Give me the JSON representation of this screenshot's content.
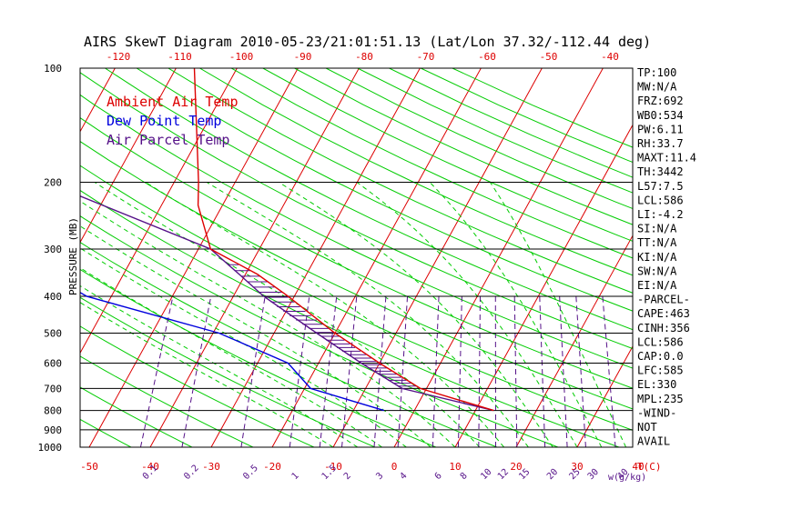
{
  "chart_data": {
    "type": "line",
    "title": "AIRS SkewT Diagram 2010-05-23/21:01:51.13 (Lat/Lon 37.32/-112.44 deg)",
    "ylabel": "PRESSURE (MB)",
    "xlabel": "T(C)",
    "mixing_ratio_unit": "w(g/kg)",
    "y_scale": "log",
    "ylim": [
      1000,
      100
    ],
    "legend": [
      "Ambient Air Temp",
      "Dew Point Temp",
      "Air Parcel Temp"
    ],
    "pressure_ticks": [
      100,
      200,
      300,
      400,
      500,
      600,
      700,
      800,
      900,
      1000
    ],
    "bottom_temp_ticks": [
      -50,
      -40,
      -30,
      -20,
      -10,
      0,
      10,
      20,
      30,
      40
    ],
    "top_temp_ticks": [
      -120,
      -110,
      -100,
      -90,
      -80,
      -70,
      -60,
      -50,
      -40
    ],
    "mixing_ratio_ticks": [
      "0.1",
      "0.2",
      "0.5",
      "1",
      "1.5",
      "2",
      "3",
      "4",
      "6",
      "8",
      "10",
      "12",
      "15",
      "20",
      "25",
      "30",
      "40"
    ],
    "series": [
      {
        "name": "Ambient Air Temp",
        "color": "#dd0000",
        "points": [
          [
            100,
            -67
          ],
          [
            200,
            -56
          ],
          [
            230,
            -54
          ],
          [
            300,
            -48
          ],
          [
            350,
            -38
          ],
          [
            400,
            -31
          ],
          [
            500,
            -20
          ],
          [
            600,
            -10
          ],
          [
            700,
            -1
          ],
          [
            800,
            13
          ]
        ]
      },
      {
        "name": "Dew Point Temp",
        "color": "#0000dd",
        "points": [
          [
            100,
            -95
          ],
          [
            150,
            -102
          ],
          [
            200,
            -100
          ],
          [
            250,
            -91
          ],
          [
            300,
            -82
          ],
          [
            400,
            -64
          ],
          [
            500,
            -39
          ],
          [
            600,
            -25
          ],
          [
            700,
            -19
          ],
          [
            800,
            -5
          ]
        ]
      },
      {
        "name": "Air Parcel Temp",
        "color": "#551188",
        "points": [
          [
            100,
            -110
          ],
          [
            200,
            -81
          ],
          [
            300,
            -48
          ],
          [
            350,
            -41
          ],
          [
            400,
            -35
          ],
          [
            500,
            -23
          ],
          [
            600,
            -13
          ],
          [
            700,
            -4
          ],
          [
            800,
            13
          ]
        ]
      }
    ],
    "colors": {
      "ambient": "#dd0000",
      "dewpoint": "#0000dd",
      "parcel": "#551188",
      "isotherm": "#dd0000",
      "dry_adiabat": "#00cc00",
      "moist_adiabat": "#00cc00",
      "mixing_ratio": "#551188"
    }
  },
  "indices": [
    "TP:100",
    "MW:N/A",
    "FRZ:692",
    "WB0:534",
    "PW:6.11",
    "RH:33.7",
    "MAXT:11.4",
    "TH:3442",
    "L57:7.5",
    "LCL:586",
    "LI:-4.2",
    "SI:N/A",
    "TT:N/A",
    "KI:N/A",
    "SW:N/A",
    "EI:N/A",
    "-PARCEL-",
    "CAPE:463",
    "CINH:356",
    "LCL:586",
    "CAP:0.0",
    "LFC:585",
    "EL:330",
    "MPL:235",
    "-WIND-",
    "NOT",
    "AVAIL"
  ]
}
